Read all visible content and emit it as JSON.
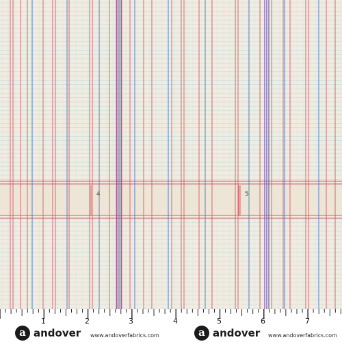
{
  "pattern": {
    "band_numbers": [
      "4",
      "5"
    ],
    "colors": {
      "background": "#f1ece0",
      "band": "#ede5d6",
      "red_line": "#d9505b",
      "blue_line": "#3d6fc4",
      "faint_rule": "#b8d6dc",
      "purple_line": "#6f58a8"
    }
  },
  "ruler": {
    "labels": [
      "1",
      "2",
      "3",
      "4",
      "5",
      "6",
      "7"
    ]
  },
  "brand": {
    "logos": [
      {
        "mark": "a",
        "word": "andover"
      },
      {
        "mark": "a",
        "word": "andover"
      }
    ],
    "urls": [
      "www.andoverfabrics.com",
      "www.andoverfabrics.com"
    ]
  }
}
